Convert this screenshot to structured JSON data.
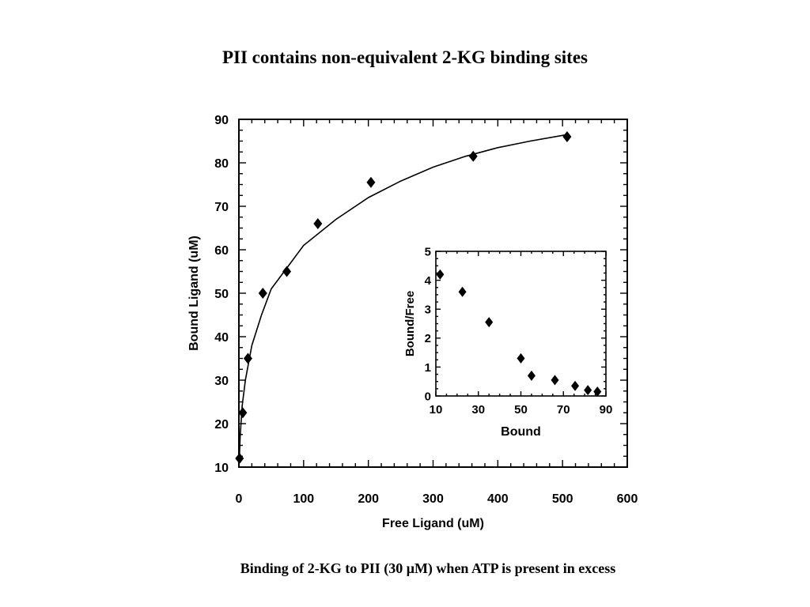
{
  "slide": {
    "title": "PII contains non-equivalent 2-KG binding sites",
    "caption": "Binding of 2-KG to PII (30 μM) when ATP is present in excess"
  },
  "chart_data": [
    {
      "type": "scatter",
      "xlabel": "Free Ligand (uM)",
      "ylabel": "Bound Ligand (uM)",
      "xlim": [
        0,
        600
      ],
      "ylim": [
        10,
        90
      ],
      "xticks": [
        "0",
        "100",
        "200",
        "300",
        "400",
        "500",
        "600"
      ],
      "yticks": [
        "10",
        "20",
        "30",
        "40",
        "50",
        "60",
        "70",
        "80",
        "90"
      ],
      "grid": false,
      "series": [
        {
          "marker": "diamond",
          "x": [
            1,
            6,
            14,
            37,
            74,
            122,
            204,
            362,
            507
          ],
          "y": [
            12,
            22.5,
            35,
            50,
            55,
            66,
            75.5,
            81.5,
            86
          ]
        }
      ],
      "fit_curve": {
        "x": [
          0.5,
          2,
          5,
          10,
          20,
          35,
          50,
          75,
          100,
          150,
          200,
          250,
          300,
          350,
          400,
          450,
          507
        ],
        "y": [
          11,
          17,
          24,
          30,
          38,
          45,
          51,
          56,
          61,
          67,
          72,
          75.8,
          79,
          81.5,
          83.5,
          85,
          86.5
        ]
      }
    },
    {
      "type": "scatter",
      "xlabel": "Bound",
      "ylabel": "Bound/Free",
      "xlim": [
        10,
        90
      ],
      "ylim": [
        0,
        5
      ],
      "xticks": [
        "10",
        "30",
        "50",
        "70",
        "90"
      ],
      "yticks": [
        "0",
        "1",
        "2",
        "3",
        "4",
        "5"
      ],
      "grid": false,
      "series": [
        {
          "marker": "diamond",
          "x": [
            12,
            22.5,
            35,
            50,
            55,
            66,
            75.5,
            81.5,
            86
          ],
          "y": [
            4.2,
            3.6,
            2.55,
            1.3,
            0.7,
            0.55,
            0.35,
            0.2,
            0.15
          ]
        }
      ]
    }
  ]
}
